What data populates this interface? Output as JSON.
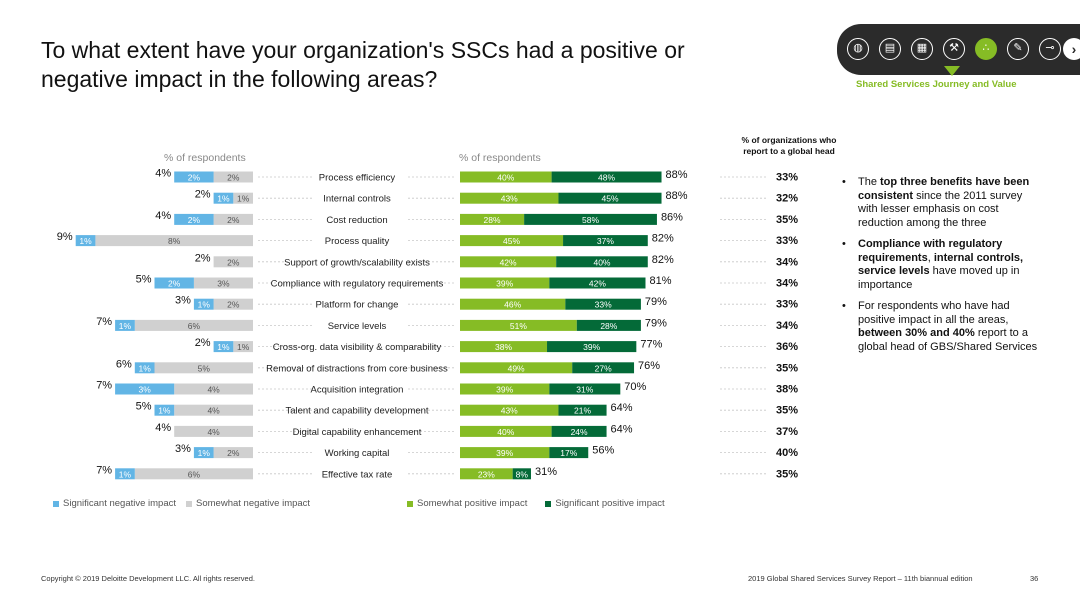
{
  "title": {
    "line1": "To what extent have your organization's SSCs had a positive or",
    "line2": "negative impact in the following areas?"
  },
  "nav": {
    "icons": [
      "globe-icon",
      "newspaper-icon",
      "chart-icon",
      "gavel-icon",
      "footprints-icon",
      "tools-icon",
      "telescope-icon"
    ],
    "active_index": 4,
    "next_icon": "›",
    "section_label": "Shared Services Journey and Value",
    "accent": "#86bc25"
  },
  "colors": {
    "sig_neg": "#62b5e5",
    "some_neg": "#d0d0d0",
    "some_pos": "#86bc25",
    "sig_pos": "#046a38"
  },
  "left_axis_label": "% of respondents",
  "right_axis_label": "% of respondents",
  "global_head_header": "% of organizations who report to a global head",
  "legend": {
    "sig_neg": "Significant negative impact",
    "some_neg": "Somewhat negative impact",
    "some_pos": "Somewhat positive impact",
    "sig_pos": "Significant positive impact"
  },
  "bullets": [
    {
      "pre": "The ",
      "bold": "top three benefits have been consistent",
      "post": " since the 2011 survey with lesser emphasis on cost reduction among the three"
    },
    {
      "pre": "",
      "bold": "Compliance with regulatory requirements",
      "mid": ", ",
      "bold2": "internal controls, service levels",
      "post": " have moved up in importance"
    },
    {
      "pre": "For respondents who have had positive impact in all the areas, ",
      "bold": "between 30% and 40%",
      "post": " report to a global head of GBS/Shared Services"
    }
  ],
  "footer": {
    "copyright": "Copyright © 2019 Deloitte Development LLC. All rights reserved.",
    "report": "2019 Global Shared Services Survey Report – 11th biannual edition",
    "page": "36"
  },
  "chart_data": {
    "type": "bar",
    "orientation": "horizontal-diverging",
    "categories": [
      "Process efficiency",
      "Internal controls",
      "Cost reduction",
      "Process quality",
      "Support of growth/scalability exists",
      "Compliance with regulatory requirements",
      "Platform for change",
      "Service levels",
      "Cross-org. data visibility & comparability",
      "Removal of distractions from core business",
      "Acquisition integration",
      "Talent and capability development",
      "Digital capability enhancement",
      "Working capital",
      "Effective tax rate"
    ],
    "series": [
      {
        "name": "Significant negative impact",
        "values": [
          2,
          1,
          2,
          1,
          0,
          2,
          1,
          1,
          1,
          1,
          3,
          1,
          0,
          1,
          1
        ],
        "labels": [
          "2%",
          "1%",
          "2%",
          "1%",
          "",
          "2%",
          "1%",
          "1%",
          "1%",
          "1%",
          "3%",
          "1%",
          "",
          "1%",
          "1%"
        ]
      },
      {
        "name": "Somewhat negative impact",
        "values": [
          2,
          1,
          2,
          8,
          2,
          3,
          2,
          6,
          1,
          5,
          4,
          4,
          4,
          2,
          6
        ],
        "labels": [
          "2%",
          "1%",
          "2%",
          "8%",
          "2%",
          "3%",
          "2%",
          "6%",
          "1%",
          "5%",
          "4%",
          "4%",
          "4%",
          "2%",
          "6%"
        ]
      },
      {
        "name": "Somewhat positive impact",
        "values": [
          40,
          43,
          28,
          45,
          42,
          39,
          46,
          51,
          38,
          49,
          39,
          43,
          40,
          39,
          23
        ],
        "labels": [
          "40%",
          "43%",
          "28%",
          "45%",
          "42%",
          "39%",
          "46%",
          "51%",
          "38%",
          "49%",
          "39%",
          "43%",
          "40%",
          "39%",
          "23%"
        ]
      },
      {
        "name": "Significant positive impact",
        "values": [
          48,
          45,
          58,
          37,
          40,
          42,
          33,
          28,
          39,
          27,
          31,
          21,
          24,
          17,
          8
        ],
        "labels": [
          "48%",
          "45%",
          "58%",
          "37%",
          "40%",
          "42%",
          "33%",
          "28%",
          "39%",
          "27%",
          "31%",
          "21%",
          "24%",
          "17%",
          "8%"
        ]
      }
    ],
    "negative_totals": [
      "4%",
      "2%",
      "4%",
      "9%",
      "2%",
      "5%",
      "3%",
      "7%",
      "2%",
      "6%",
      "7%",
      "5%",
      "4%",
      "3%",
      "7%"
    ],
    "positive_totals": [
      "88%",
      "88%",
      "86%",
      "82%",
      "82%",
      "81%",
      "79%",
      "79%",
      "77%",
      "76%",
      "70%",
      "64%",
      "64%",
      "56%",
      "31%"
    ],
    "global_head": [
      "33%",
      "32%",
      "35%",
      "33%",
      "34%",
      "34%",
      "33%",
      "34%",
      "36%",
      "35%",
      "38%",
      "35%",
      "37%",
      "40%",
      "35%"
    ],
    "xlabel": "% of respondents",
    "ylabel": ""
  }
}
